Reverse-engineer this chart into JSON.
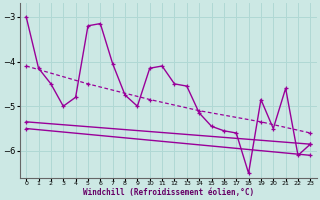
{
  "xlabel": "Windchill (Refroidissement éolien,°C)",
  "background_color": "#cce8e4",
  "grid_color": "#b0d8d4",
  "line_color": "#990099",
  "xlim": [
    -0.5,
    23.5
  ],
  "ylim": [
    -6.6,
    -2.7
  ],
  "yticks": [
    -6,
    -5,
    -4,
    -3
  ],
  "xticks": [
    0,
    1,
    2,
    3,
    4,
    5,
    6,
    7,
    8,
    9,
    10,
    11,
    12,
    13,
    14,
    15,
    16,
    17,
    18,
    19,
    20,
    21,
    22,
    23
  ],
  "series1_x": [
    0,
    1,
    2,
    3,
    4,
    5,
    6,
    7,
    8,
    9,
    10,
    11,
    12,
    13,
    14,
    15,
    16,
    17,
    18,
    19,
    20,
    21,
    22,
    23
  ],
  "series1_y": [
    -3.0,
    -4.15,
    -4.5,
    -5.0,
    -4.8,
    -3.2,
    -3.15,
    -4.05,
    -4.75,
    -5.0,
    -4.15,
    -4.1,
    -4.5,
    -4.55,
    -5.15,
    -5.45,
    -5.55,
    -5.6,
    -6.5,
    -4.85,
    -5.5,
    -4.6,
    -6.1,
    -5.85
  ],
  "series2_x": [
    0,
    23
  ],
  "series2_y": [
    -5.35,
    -5.85
  ],
  "series3_x": [
    0,
    23
  ],
  "series3_y": [
    -5.5,
    -6.1
  ],
  "series4_x": [
    0,
    5,
    10,
    14,
    19,
    23
  ],
  "series4_y": [
    -4.1,
    -4.5,
    -4.85,
    -5.1,
    -5.35,
    -5.6
  ]
}
